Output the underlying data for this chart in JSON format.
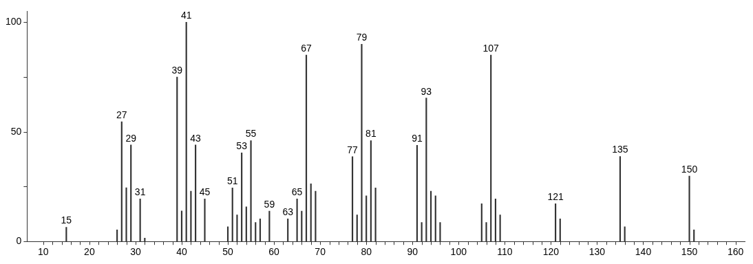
{
  "chart_data": {
    "type": "bar",
    "color": "#333333",
    "x": [
      15,
      26,
      27,
      28,
      29,
      31,
      32,
      39,
      40,
      41,
      42,
      43,
      45,
      50,
      51,
      52,
      53,
      54,
      55,
      56,
      57,
      59,
      63,
      65,
      66,
      67,
      68,
      69,
      77,
      78,
      79,
      80,
      81,
      82,
      91,
      92,
      93,
      94,
      95,
      96,
      105,
      106,
      107,
      108,
      109,
      121,
      122,
      135,
      136,
      150,
      151
    ],
    "values": [
      6.5,
      5.3,
      54.6,
      24.5,
      44,
      19.4,
      1.5,
      75,
      13.9,
      100,
      22.9,
      44,
      19.4,
      6.7,
      24.4,
      12.1,
      40.4,
      15.8,
      46,
      8.7,
      10.3,
      13.8,
      10.3,
      19.4,
      13.8,
      85,
      26.3,
      22.9,
      38.7,
      12.1,
      90,
      20.8,
      46,
      24.4,
      43.9,
      8.7,
      65.4,
      22.9,
      20.8,
      8.7,
      17.2,
      8.7,
      85,
      19.4,
      12.1,
      17.2,
      10.3,
      38.8,
      6.7,
      29.8,
      5.3
    ],
    "xlim": [
      6.5,
      162
    ],
    "ylim": [
      0,
      105
    ],
    "xticks": [
      10,
      {
        "value": 12,
        "label": null
      },
      {
        "value": 14,
        "label": null
      },
      {
        "value": 16,
        "label": null
      },
      {
        "value": 18,
        "label": null
      },
      20,
      {
        "value": 22,
        "label": null
      },
      {
        "value": 24,
        "label": null
      },
      {
        "value": 26,
        "label": null
      },
      {
        "value": 28,
        "label": null
      },
      30,
      {
        "value": 32,
        "label": null
      },
      {
        "value": 34,
        "label": null
      },
      {
        "value": 36,
        "label": null
      },
      {
        "value": 38,
        "label": null
      },
      40,
      {
        "value": 42,
        "label": null
      },
      {
        "value": 44,
        "label": null
      },
      {
        "value": 46,
        "label": null
      },
      {
        "value": 48,
        "label": null
      },
      50,
      {
        "value": 52,
        "label": null
      },
      {
        "value": 54,
        "label": null
      },
      {
        "value": 56,
        "label": null
      },
      {
        "value": 58,
        "label": null
      },
      60,
      {
        "value": 62,
        "label": null
      },
      {
        "value": 64,
        "label": null
      },
      {
        "value": 66,
        "label": null
      },
      {
        "value": 68,
        "label": null
      },
      70,
      {
        "value": 72,
        "label": null
      },
      {
        "value": 74,
        "label": null
      },
      {
        "value": 76,
        "label": null
      },
      {
        "value": 78,
        "label": null
      },
      80,
      {
        "value": 82,
        "label": null
      },
      {
        "value": 84,
        "label": null
      },
      {
        "value": 86,
        "label": null
      },
      {
        "value": 88,
        "label": null
      },
      90,
      {
        "value": 92,
        "label": null
      },
      {
        "value": 94,
        "label": null
      },
      {
        "value": 96,
        "label": null
      },
      {
        "value": 98,
        "label": null
      },
      100,
      {
        "value": 102,
        "label": null
      },
      {
        "value": 104,
        "label": null
      },
      {
        "value": 106,
        "label": null
      },
      {
        "value": 108,
        "label": null
      },
      110,
      {
        "value": 112,
        "label": null
      },
      {
        "value": 114,
        "label": null
      },
      {
        "value": 116,
        "label": null
      },
      {
        "value": 118,
        "label": null
      },
      120,
      {
        "value": 122,
        "label": null
      },
      {
        "value": 124,
        "label": null
      },
      {
        "value": 126,
        "label": null
      },
      {
        "value": 128,
        "label": null
      },
      130,
      {
        "value": 132,
        "label": null
      },
      {
        "value": 134,
        "label": null
      },
      {
        "value": 136,
        "label": null
      },
      {
        "value": 138,
        "label": null
      },
      140,
      {
        "value": 142,
        "label": null
      },
      {
        "value": 144,
        "label": null
      },
      {
        "value": 146,
        "label": null
      },
      {
        "value": 148,
        "label": null
      },
      150,
      {
        "value": 152,
        "label": null
      },
      {
        "value": 154,
        "label": null
      },
      {
        "value": 156,
        "label": null
      },
      {
        "value": 158,
        "label": null
      },
      160
    ],
    "yticks": [
      0,
      {
        "value": 25,
        "label": null
      },
      50,
      {
        "value": 75,
        "label": null
      },
      100
    ],
    "annotations": [
      {
        "text": "15",
        "x": 15,
        "y": 6.5
      },
      {
        "text": "27",
        "x": 27,
        "y": 54.6
      },
      {
        "text": "29",
        "x": 29,
        "y": 44
      },
      {
        "text": "31",
        "x": 31,
        "y": 19.4
      },
      {
        "text": "39",
        "x": 39,
        "y": 75
      },
      {
        "text": "41",
        "x": 41,
        "y": 100
      },
      {
        "text": "43",
        "x": 43,
        "y": 44
      },
      {
        "text": "45",
        "x": 45,
        "y": 19.4
      },
      {
        "text": "51",
        "x": 51,
        "y": 24.4
      },
      {
        "text": "53",
        "x": 53,
        "y": 40.4
      },
      {
        "text": "55",
        "x": 55,
        "y": 46
      },
      {
        "text": "59",
        "x": 59,
        "y": 13.8
      },
      {
        "text": "63",
        "x": 63,
        "y": 10.3
      },
      {
        "text": "65",
        "x": 65,
        "y": 19.4
      },
      {
        "text": "67",
        "x": 67,
        "y": 85
      },
      {
        "text": "77",
        "x": 77,
        "y": 38.7
      },
      {
        "text": "79",
        "x": 79,
        "y": 90
      },
      {
        "text": "81",
        "x": 81,
        "y": 46
      },
      {
        "text": "91",
        "x": 91,
        "y": 43.9
      },
      {
        "text": "93",
        "x": 93,
        "y": 65.4
      },
      {
        "text": "107",
        "x": 107,
        "y": 85
      },
      {
        "text": "121",
        "x": 121,
        "y": 17.2
      },
      {
        "text": "135",
        "x": 135,
        "y": 38.8
      },
      {
        "text": "150",
        "x": 150,
        "y": 29.8
      }
    ],
    "grid": false,
    "legend": false
  }
}
